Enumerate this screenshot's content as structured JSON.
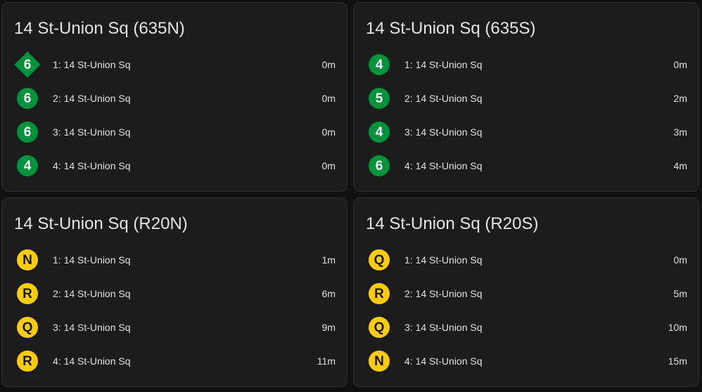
{
  "colors": {
    "green_line": "#00933c",
    "yellow_line": "#fccc0a",
    "white_text": "#ffffff",
    "black_text": "#111111"
  },
  "cards": [
    {
      "title": "14 St-Union Sq (635N)",
      "trains": [
        {
          "route": "6",
          "shape": "diamond",
          "line": "green",
          "destination": "1: 14 St-Union Sq",
          "eta": "0m"
        },
        {
          "route": "6",
          "shape": "circle",
          "line": "green",
          "destination": "2: 14 St-Union Sq",
          "eta": "0m"
        },
        {
          "route": "6",
          "shape": "circle",
          "line": "green",
          "destination": "3: 14 St-Union Sq",
          "eta": "0m"
        },
        {
          "route": "4",
          "shape": "circle",
          "line": "green",
          "destination": "4: 14 St-Union Sq",
          "eta": "0m"
        }
      ]
    },
    {
      "title": "14 St-Union Sq (635S)",
      "trains": [
        {
          "route": "4",
          "shape": "circle",
          "line": "green",
          "destination": "1: 14 St-Union Sq",
          "eta": "0m"
        },
        {
          "route": "5",
          "shape": "circle",
          "line": "green",
          "destination": "2: 14 St-Union Sq",
          "eta": "2m"
        },
        {
          "route": "4",
          "shape": "circle",
          "line": "green",
          "destination": "3: 14 St-Union Sq",
          "eta": "3m"
        },
        {
          "route": "6",
          "shape": "circle",
          "line": "green",
          "destination": "4: 14 St-Union Sq",
          "eta": "4m"
        }
      ]
    },
    {
      "title": "14 St-Union Sq (R20N)",
      "trains": [
        {
          "route": "N",
          "shape": "circle",
          "line": "yellow",
          "destination": "1: 14 St-Union Sq",
          "eta": "1m"
        },
        {
          "route": "R",
          "shape": "circle",
          "line": "yellow",
          "destination": "2: 14 St-Union Sq",
          "eta": "6m"
        },
        {
          "route": "Q",
          "shape": "circle",
          "line": "yellow",
          "destination": "3: 14 St-Union Sq",
          "eta": "9m"
        },
        {
          "route": "R",
          "shape": "circle",
          "line": "yellow",
          "destination": "4: 14 St-Union Sq",
          "eta": "11m"
        }
      ]
    },
    {
      "title": "14 St-Union Sq (R20S)",
      "trains": [
        {
          "route": "Q",
          "shape": "circle",
          "line": "yellow",
          "destination": "1: 14 St-Union Sq",
          "eta": "0m"
        },
        {
          "route": "R",
          "shape": "circle",
          "line": "yellow",
          "destination": "2: 14 St-Union Sq",
          "eta": "5m"
        },
        {
          "route": "Q",
          "shape": "circle",
          "line": "yellow",
          "destination": "3: 14 St-Union Sq",
          "eta": "10m"
        },
        {
          "route": "N",
          "shape": "circle",
          "line": "yellow",
          "destination": "4: 14 St-Union Sq",
          "eta": "15m"
        }
      ]
    }
  ]
}
